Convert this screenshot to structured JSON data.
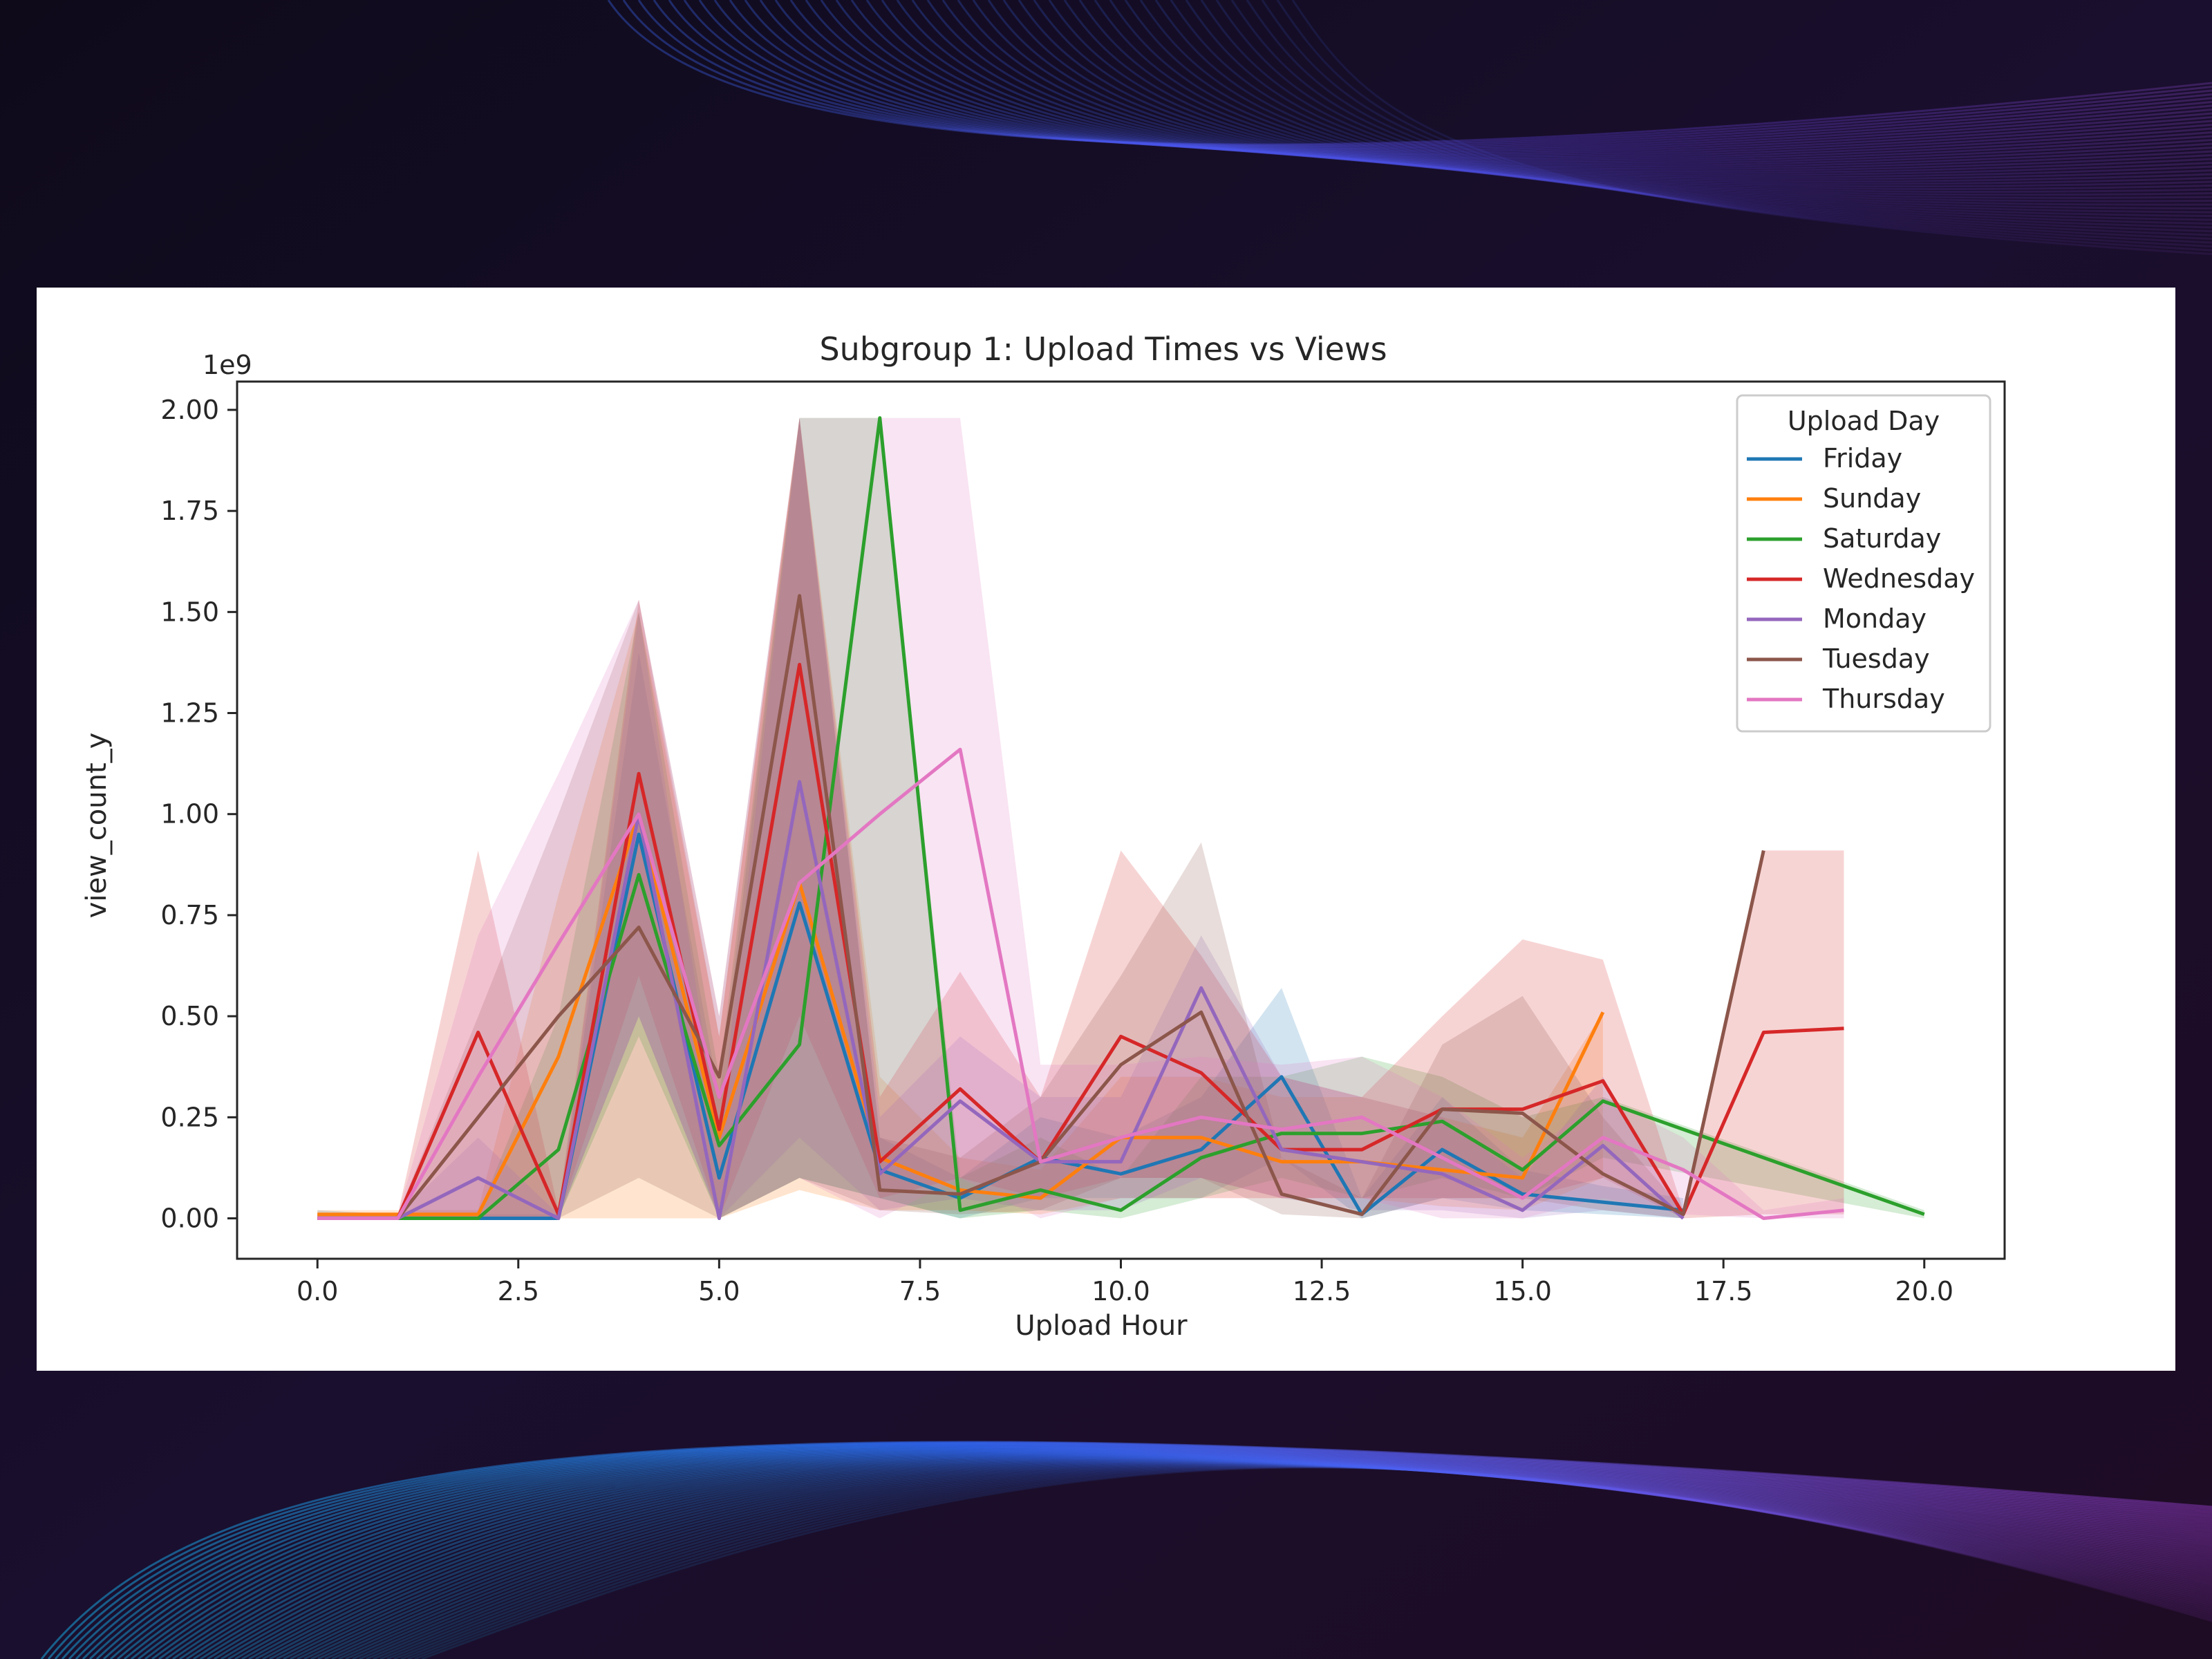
{
  "chart_data": {
    "type": "line",
    "title": "Subgroup 1: Upload Times vs Views",
    "xlabel": "Upload Hour",
    "ylabel": "view_count_y",
    "y_offset_label": "1e9",
    "xlim": [
      -1.0,
      21.0
    ],
    "ylim": [
      -0.1,
      2.07
    ],
    "x_ticks": [
      0.0,
      2.5,
      5.0,
      7.5,
      10.0,
      12.5,
      15.0,
      17.5,
      20.0
    ],
    "x_tick_labels": [
      "0.0",
      "2.5",
      "5.0",
      "7.5",
      "10.0",
      "12.5",
      "15.0",
      "17.5",
      "20.0"
    ],
    "y_ticks": [
      0.0,
      0.25,
      0.5,
      0.75,
      1.0,
      1.25,
      1.5,
      1.75,
      2.0
    ],
    "y_tick_labels": [
      "0.00",
      "0.25",
      "0.50",
      "0.75",
      "1.00",
      "1.25",
      "1.50",
      "1.75",
      "2.00"
    ],
    "legend_title": "Upload Day",
    "legend_position": "top-right",
    "grid": false,
    "confidence_bands": true,
    "series": [
      {
        "name": "Friday",
        "color": "#1f77b4",
        "x": [
          0,
          1,
          2,
          3,
          4,
          5,
          6,
          7,
          8,
          9,
          10,
          11,
          12,
          13,
          14,
          15,
          16,
          17
        ],
        "y": [
          0.0,
          0.0,
          0.0,
          0.0,
          0.95,
          0.1,
          0.78,
          0.12,
          0.05,
          0.15,
          0.11,
          0.17,
          0.35,
          0.01,
          0.17,
          0.06,
          0.04,
          0.02
        ],
        "band_low": [
          0.0,
          0.0,
          0.0,
          0.0,
          0.5,
          0.0,
          0.1,
          0.05,
          0.0,
          0.05,
          0.05,
          0.05,
          0.15,
          0.0,
          0.05,
          0.02,
          0.01,
          0.0
        ],
        "band_high": [
          0.02,
          0.01,
          0.01,
          0.01,
          1.4,
          0.3,
          1.98,
          0.2,
          0.1,
          0.25,
          0.2,
          0.3,
          0.57,
          0.05,
          0.3,
          0.12,
          0.08,
          0.05
        ]
      },
      {
        "name": "Sunday",
        "color": "#ff7f0e",
        "x": [
          0,
          1,
          2,
          3,
          4,
          5,
          6,
          7,
          8,
          9,
          10,
          11,
          12,
          13,
          14,
          15,
          16
        ],
        "y": [
          0.01,
          0.01,
          0.01,
          0.4,
          1.0,
          0.2,
          0.83,
          0.15,
          0.07,
          0.05,
          0.2,
          0.2,
          0.14,
          0.14,
          0.12,
          0.1,
          0.51
        ],
        "band_low": [
          0.0,
          0.0,
          0.0,
          0.0,
          0.0,
          0.0,
          0.07,
          0.02,
          0.02,
          0.01,
          0.05,
          0.05,
          0.05,
          0.05,
          0.03,
          0.02,
          0.1
        ],
        "band_high": [
          0.02,
          0.02,
          0.02,
          0.8,
          1.5,
          0.45,
          1.98,
          0.35,
          0.15,
          0.12,
          0.35,
          0.35,
          0.3,
          0.3,
          0.25,
          0.2,
          0.51
        ]
      },
      {
        "name": "Saturday",
        "color": "#2ca02c",
        "x": [
          0,
          1,
          2,
          3,
          4,
          5,
          6,
          7,
          8,
          9,
          10,
          11,
          12,
          13,
          14,
          15,
          16,
          20
        ],
        "y": [
          0.0,
          0.0,
          0.0,
          0.17,
          0.85,
          0.18,
          0.43,
          1.98,
          0.02,
          0.07,
          0.02,
          0.15,
          0.21,
          0.21,
          0.24,
          0.12,
          0.29,
          0.01
        ],
        "band_low": [
          0.0,
          0.0,
          0.0,
          0.0,
          0.45,
          0.0,
          0.1,
          0.05,
          0.0,
          0.02,
          0.0,
          0.05,
          0.1,
          0.05,
          0.1,
          0.05,
          0.15,
          0.0
        ],
        "band_high": [
          0.01,
          0.01,
          0.01,
          0.5,
          1.5,
          0.35,
          1.98,
          1.98,
          0.1,
          0.2,
          0.1,
          0.35,
          0.35,
          0.4,
          0.35,
          0.25,
          0.3,
          0.02
        ]
      },
      {
        "name": "Wednesday",
        "color": "#d62728",
        "x": [
          0,
          1,
          2,
          3,
          4,
          5,
          6,
          7,
          8,
          9,
          10,
          11,
          12,
          13,
          14,
          15,
          16,
          17,
          18,
          19
        ],
        "y": [
          0.0,
          0.0,
          0.46,
          0.01,
          1.1,
          0.22,
          1.37,
          0.14,
          0.32,
          0.14,
          0.45,
          0.36,
          0.17,
          0.17,
          0.27,
          0.27,
          0.34,
          0.01,
          0.46,
          0.47
        ],
        "band_low": [
          0.0,
          0.0,
          0.0,
          0.0,
          0.6,
          0.0,
          0.5,
          0.05,
          0.1,
          0.05,
          0.1,
          0.1,
          0.05,
          0.05,
          0.05,
          0.05,
          0.1,
          0.0,
          0.01,
          0.01
        ],
        "band_high": [
          0.01,
          0.01,
          0.91,
          0.02,
          1.53,
          0.45,
          1.98,
          0.3,
          0.61,
          0.3,
          0.91,
          0.65,
          0.35,
          0.3,
          0.5,
          0.69,
          0.64,
          0.02,
          0.91,
          0.91
        ]
      },
      {
        "name": "Monday",
        "color": "#9467bd",
        "x": [
          0,
          1,
          2,
          3,
          4,
          5,
          6,
          7,
          8,
          9,
          10,
          11,
          12,
          13,
          14,
          15,
          16,
          17
        ],
        "y": [
          0.0,
          0.0,
          0.1,
          0.0,
          1.0,
          0.0,
          1.08,
          0.11,
          0.29,
          0.14,
          0.14,
          0.57,
          0.17,
          0.14,
          0.11,
          0.02,
          0.18,
          0.0
        ],
        "band_low": [
          0.0,
          0.0,
          0.0,
          0.0,
          0.5,
          0.0,
          0.2,
          0.02,
          0.05,
          0.02,
          0.02,
          0.1,
          0.05,
          0.02,
          0.02,
          0.0,
          0.02,
          0.0
        ],
        "band_high": [
          0.01,
          0.01,
          0.2,
          0.01,
          1.5,
          0.2,
          1.98,
          0.25,
          0.45,
          0.3,
          0.3,
          0.7,
          0.35,
          0.3,
          0.25,
          0.1,
          0.35,
          0.01
        ]
      },
      {
        "name": "Tuesday",
        "color": "#8c564b",
        "x": [
          0,
          1,
          2,
          3,
          4,
          5,
          6,
          7,
          8,
          9,
          10,
          11,
          12,
          13,
          14,
          15,
          16,
          17,
          18
        ],
        "y": [
          0.0,
          0.0,
          0.25,
          0.5,
          0.72,
          0.35,
          1.54,
          0.07,
          0.06,
          0.14,
          0.38,
          0.51,
          0.06,
          0.01,
          0.27,
          0.26,
          0.11,
          0.01,
          0.91
        ],
        "band_low": [
          0.0,
          0.0,
          0.0,
          0.0,
          0.1,
          0.0,
          0.1,
          0.02,
          0.01,
          0.02,
          0.1,
          0.1,
          0.01,
          0.0,
          0.05,
          0.05,
          0.02,
          0.0,
          0.91
        ],
        "band_high": [
          0.01,
          0.01,
          0.5,
          1.0,
          1.53,
          0.5,
          1.98,
          0.2,
          0.15,
          0.3,
          0.6,
          0.93,
          0.15,
          0.05,
          0.43,
          0.55,
          0.25,
          0.02,
          0.91
        ]
      },
      {
        "name": "Thursday",
        "color": "#e377c2",
        "x": [
          0,
          1,
          2,
          3,
          4,
          5,
          6,
          7,
          8,
          9,
          10,
          11,
          12,
          13,
          14,
          15,
          16,
          17,
          18,
          19
        ],
        "y": [
          0.0,
          0.0,
          0.35,
          0.68,
          1.0,
          0.3,
          0.83,
          1.0,
          1.16,
          0.14,
          0.2,
          0.25,
          0.22,
          0.25,
          0.15,
          0.05,
          0.2,
          0.12,
          0.0,
          0.02
        ],
        "band_low": [
          0.0,
          0.0,
          0.0,
          0.0,
          0.5,
          0.0,
          0.1,
          0.0,
          0.1,
          0.0,
          0.05,
          0.05,
          0.05,
          0.05,
          0.0,
          0.0,
          0.05,
          0.01,
          0.0,
          0.0
        ],
        "band_high": [
          0.01,
          0.01,
          0.7,
          1.1,
          1.53,
          0.5,
          1.98,
          1.98,
          1.98,
          0.38,
          0.38,
          0.4,
          0.38,
          0.4,
          0.3,
          0.15,
          0.3,
          0.2,
          0.02,
          0.05
        ]
      }
    ]
  }
}
